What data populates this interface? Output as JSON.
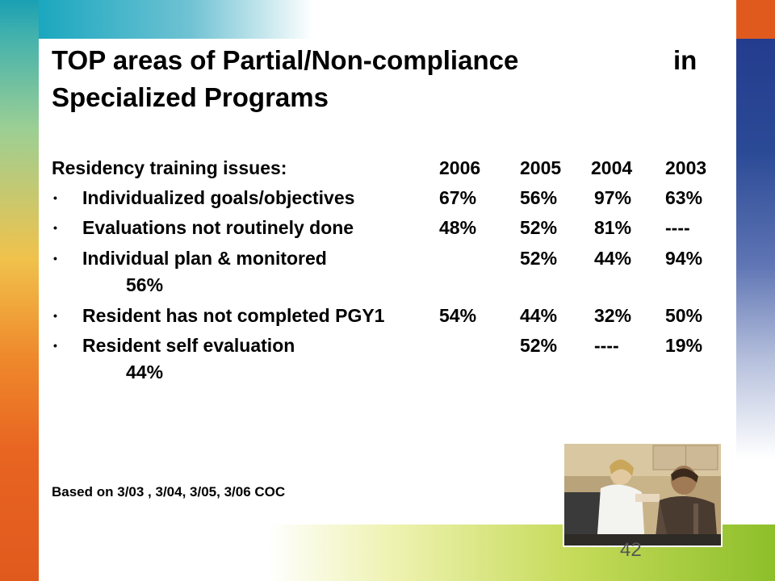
{
  "title": {
    "line1a": "TOP areas of Partial/Non-compliance",
    "line1b": "in",
    "line2": "Specialized Programs"
  },
  "header": {
    "label": "Residency training issues:",
    "years": [
      "2006",
      "2005",
      "2004",
      "2003"
    ]
  },
  "rows": [
    {
      "label": "Individualized goals/objectives",
      "values": [
        "67%",
        "56%",
        "97%",
        "63%"
      ]
    },
    {
      "label": "Evaluations not routinely done",
      "values": [
        "48%",
        "52%",
        "81%",
        "----"
      ]
    },
    {
      "label": "Individual plan & monitored",
      "values": [
        "52%",
        "44%",
        "94%"
      ],
      "wrap": "56%"
    },
    {
      "label": "Resident has not completed PGY1",
      "values": [
        "54%",
        "44%",
        "32%",
        "50%"
      ]
    },
    {
      "label": "Resident self evaluation",
      "values": [
        "52%",
        "----",
        "19%"
      ],
      "wrap": "44%"
    }
  ],
  "footnote": "Based on 3/03 , 3/04, 3/05, 3/06  COC",
  "page_number": "42",
  "colors": {
    "orange": "#e05a1e",
    "blue": "#243c8e",
    "teal": "#1aa7bf",
    "green": "#8dbf2a"
  }
}
